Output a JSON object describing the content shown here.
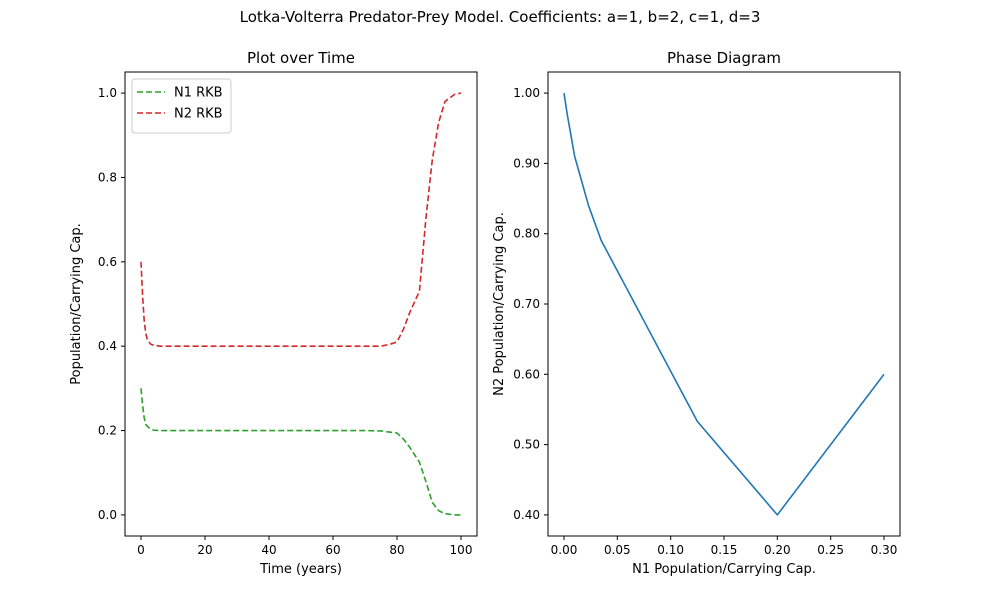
{
  "figure": {
    "suptitle": "Lotka-Volterra Predator-Prey Model. Coefficients: a=1, b=2, c=1, d=3"
  },
  "chart_data": [
    {
      "type": "line",
      "title": "Plot over Time",
      "xlabel": "Time (years)",
      "ylabel": "Population/Carrying Cap.",
      "xlim": [
        -5,
        105
      ],
      "ylim": [
        -0.05,
        1.05
      ],
      "xticks": [
        0,
        20,
        40,
        60,
        80,
        100
      ],
      "yticks": [
        0.0,
        0.2,
        0.4,
        0.6,
        0.8,
        1.0
      ],
      "grid": false,
      "legend": "top-left",
      "series": [
        {
          "name": "N1 RKB",
          "color": "#2ca02c",
          "style": "dashed",
          "x": [
            0,
            0.5,
            1,
            1.5,
            2,
            3,
            4,
            6,
            10,
            20,
            40,
            60,
            70,
            75,
            78,
            80,
            82,
            84,
            87,
            89,
            91,
            93,
            95,
            98,
            100
          ],
          "y": [
            0.3,
            0.26,
            0.23,
            0.215,
            0.21,
            0.203,
            0.201,
            0.2,
            0.2,
            0.2,
            0.2,
            0.2,
            0.2,
            0.199,
            0.196,
            0.194,
            0.18,
            0.16,
            0.125,
            0.08,
            0.03,
            0.01,
            0.003,
            0.0,
            0.0
          ]
        },
        {
          "name": "N2 RKB",
          "color": "#d62728",
          "style": "dashed",
          "x": [
            0,
            0.5,
            1,
            1.5,
            2,
            3,
            4,
            6,
            10,
            20,
            40,
            60,
            70,
            75,
            78,
            80,
            82,
            84,
            87,
            89,
            91,
            93,
            95,
            98,
            100
          ],
          "y": [
            0.6,
            0.52,
            0.46,
            0.43,
            0.415,
            0.405,
            0.402,
            0.4,
            0.4,
            0.4,
            0.4,
            0.4,
            0.4,
            0.4,
            0.405,
            0.41,
            0.44,
            0.48,
            0.53,
            0.7,
            0.84,
            0.93,
            0.98,
            0.997,
            1.0
          ]
        }
      ]
    },
    {
      "type": "line",
      "title": "Phase Diagram",
      "xlabel": "N1 Population/Carrying Cap.",
      "ylabel": "N2 Population/Carrying Cap.",
      "xlim": [
        -0.015,
        0.315
      ],
      "ylim": [
        0.37,
        1.03
      ],
      "xticks": [
        0.0,
        0.05,
        0.1,
        0.15,
        0.2,
        0.25,
        0.3
      ],
      "yticks": [
        0.4,
        0.5,
        0.6,
        0.7,
        0.8,
        0.9,
        1.0
      ],
      "grid": false,
      "series": [
        {
          "color": "#1f77b4",
          "style": "solid",
          "x": [
            0.3,
            0.2,
            0.125,
            0.035,
            0.023,
            0.01,
            0.003,
            0.0
          ],
          "y": [
            0.6,
            0.4,
            0.533,
            0.79,
            0.84,
            0.91,
            0.97,
            1.0
          ]
        }
      ]
    }
  ]
}
